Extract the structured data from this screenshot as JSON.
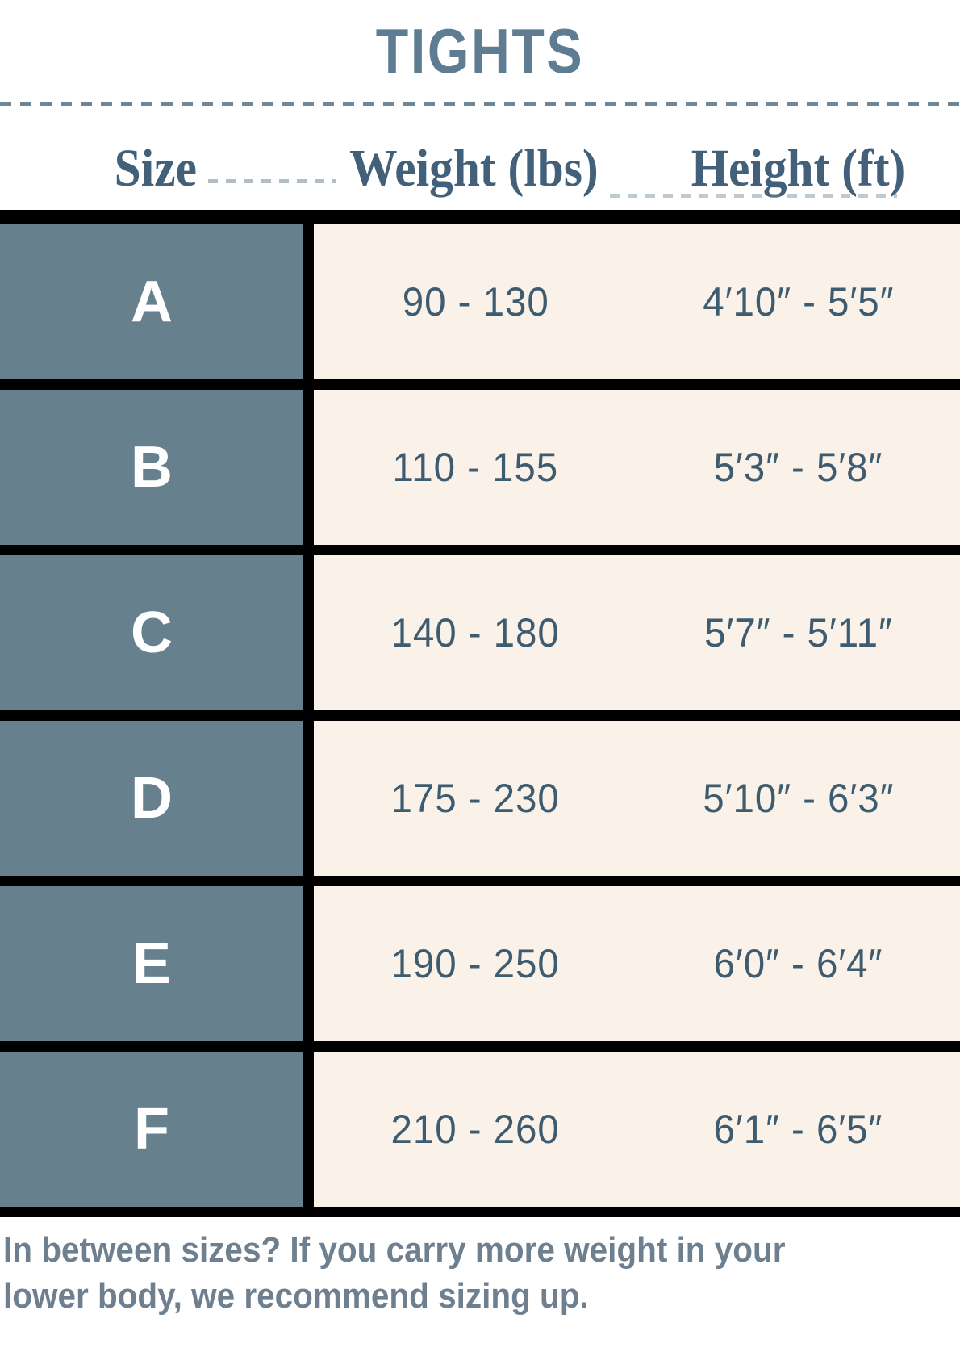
{
  "title": "TIGHTS",
  "header": {
    "size": "Size",
    "weight": "Weight (lbs)",
    "height": "Height (ft)"
  },
  "rows": [
    {
      "size": "A",
      "weight": "90 - 130",
      "height": "4′10″ - 5′5″"
    },
    {
      "size": "B",
      "weight": "110 - 155",
      "height": "5′3″ - 5′8″"
    },
    {
      "size": "C",
      "weight": "140 - 180",
      "height": "5′7″ - 5′11″"
    },
    {
      "size": "D",
      "weight": "175 - 230",
      "height": "5′10″ - 6′3″"
    },
    {
      "size": "E",
      "weight": "190 - 250",
      "height": "6′0″ - 6′4″"
    },
    {
      "size": "F",
      "weight": "210 - 260",
      "height": "6′1″ - 6′5″"
    }
  ],
  "note": {
    "lines": [
      "In between sizes? If you carry more weight in your",
      "lower body, we recommend sizing up."
    ],
    "text": "In between sizes? If you carry more weight in your lower body, we recommend sizing up."
  },
  "colors": {
    "background": "#FFFFFF",
    "title_text": "#5E7D92",
    "header_text": "#42607A",
    "size_cell_bg": "#66808E",
    "size_cell_text": "#FFFFFF",
    "data_cell_bg": "#FAF1E8",
    "data_text": "#3E5C70",
    "note_text": "#6E8090",
    "separator": "#000000",
    "dashed_rule": "#6E8798"
  },
  "chart_data": {
    "type": "table",
    "title": "TIGHTS",
    "columns": [
      "Size",
      "Weight (lbs)",
      "Height (ft)"
    ],
    "rows": [
      [
        "A",
        "90 - 130",
        "4′10″ - 5′5″"
      ],
      [
        "B",
        "110 - 155",
        "5′3″ - 5′8″"
      ],
      [
        "C",
        "140 - 180",
        "5′7″ - 5′11″"
      ],
      [
        "D",
        "175 - 230",
        "5′10″ - 6′3″"
      ],
      [
        "E",
        "190 - 250",
        "6′0″ - 6′4″"
      ],
      [
        "F",
        "210 - 260",
        "6′1″ - 6′5″"
      ]
    ],
    "annotations": [
      "In between sizes? If you carry more weight in your lower body, we recommend sizing up."
    ]
  }
}
